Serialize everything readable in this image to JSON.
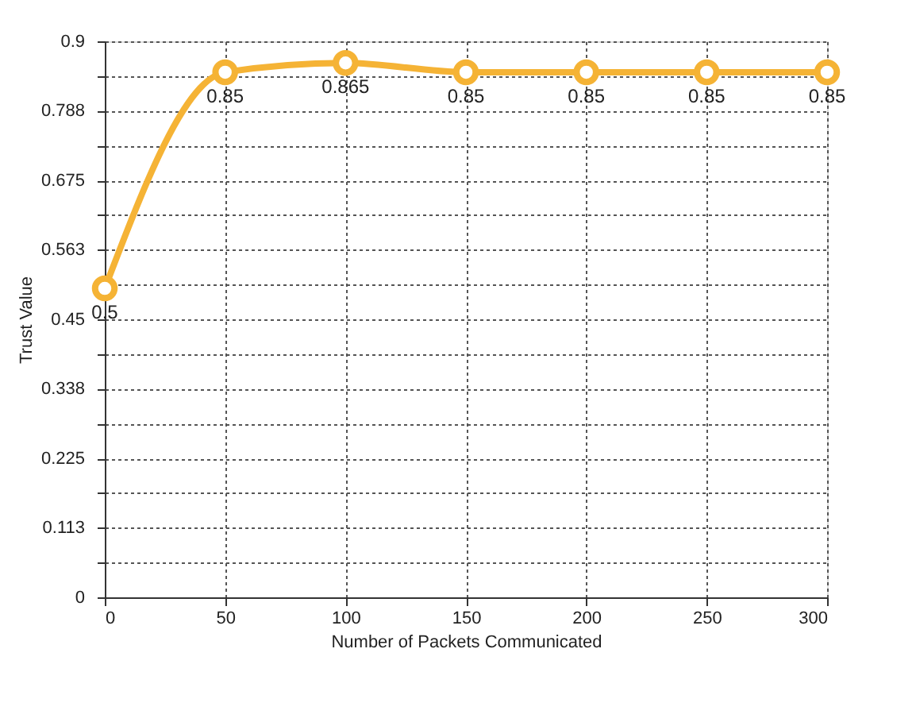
{
  "chart_data": {
    "type": "line",
    "xlabel": "Number of Packets Communicated",
    "ylabel": "Trust Value",
    "x": [
      0,
      50,
      100,
      150,
      200,
      250,
      300
    ],
    "series": [
      {
        "color": "#f5b335",
        "values": [
          0.5,
          0.85,
          0.865,
          0.85,
          0.85,
          0.85,
          0.85
        ]
      }
    ],
    "xlim": [
      0,
      300
    ],
    "xticks": [
      0,
      50,
      100,
      150,
      200,
      250,
      300
    ],
    "ylim": [
      0,
      0.9
    ],
    "yticks": [
      0,
      {
        "value": 0.05625,
        "label": null
      },
      0.113,
      {
        "value": 0.16875,
        "label": null
      },
      0.225,
      {
        "value": 0.28125,
        "label": null
      },
      0.338,
      {
        "value": 0.39375,
        "label": null
      },
      0.45,
      {
        "value": 0.50625,
        "label": null
      },
      0.563,
      {
        "value": 0.61875,
        "label": null
      },
      0.675,
      {
        "value": 0.73125,
        "label": null
      },
      0.788,
      {
        "value": 0.84375,
        "label": null
      },
      0.9
    ],
    "grid": true,
    "marker": "circle",
    "line_style": "solid",
    "data_labels": true
  }
}
